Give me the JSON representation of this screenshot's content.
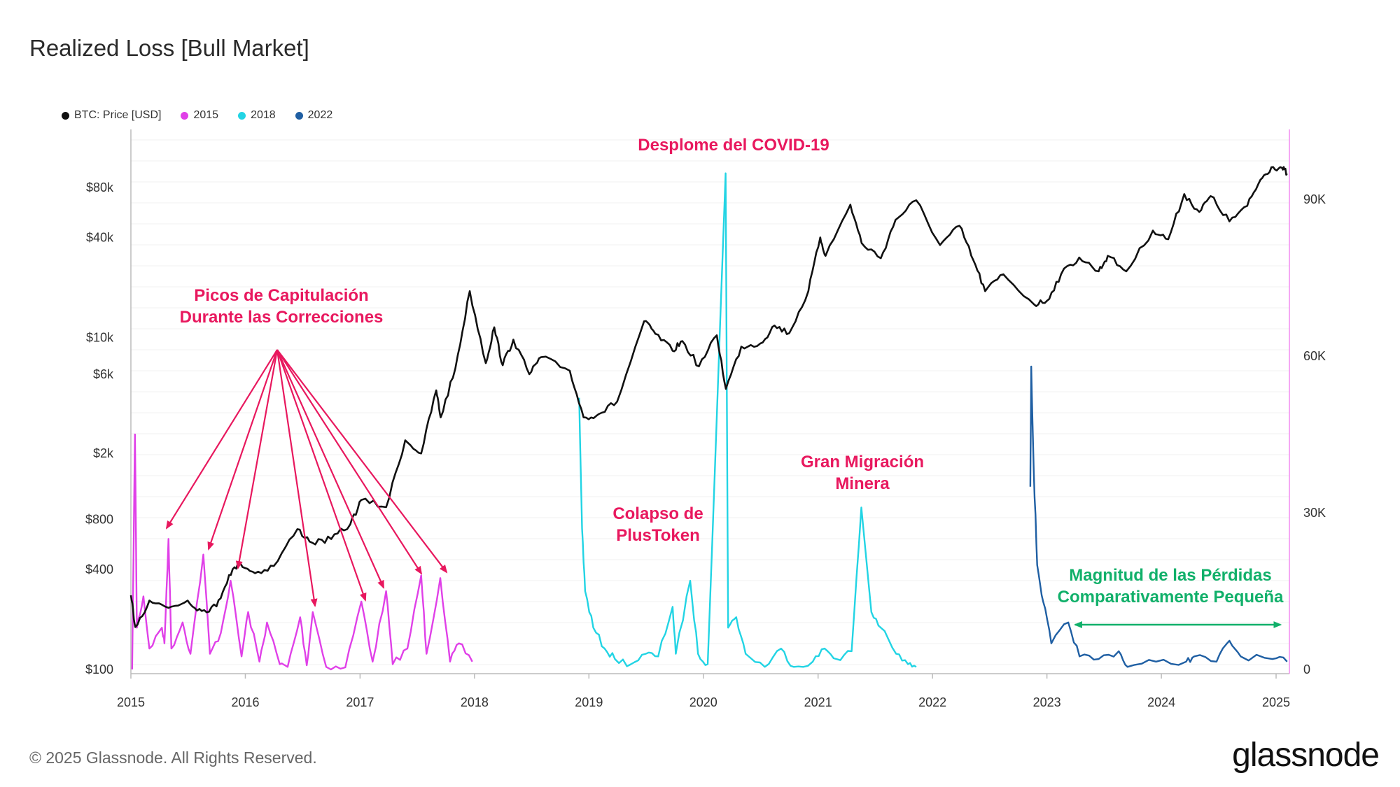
{
  "title": "Realized Loss [Bull Market]",
  "legend": [
    {
      "label": "BTC: Price [USD]",
      "color": "#111111"
    },
    {
      "label": "2015",
      "color": "#e040e8"
    },
    {
      "label": "2018",
      "color": "#22d4e4"
    },
    {
      "label": "2022",
      "color": "#1f5fa3"
    }
  ],
  "footer": "© 2025 Glassnode. All Rights Reserved.",
  "logo": "glassnode",
  "chart_data": {
    "type": "line",
    "x_ticks": [
      "2015",
      "2016",
      "2017",
      "2018",
      "2019",
      "2020",
      "2021",
      "2022",
      "2023",
      "2024",
      "2025"
    ],
    "y_left": {
      "scale": "log",
      "ticks": [
        "$100",
        "$400",
        "$800",
        "$2k",
        "$6k",
        "$10k",
        "$40k",
        "$80k"
      ],
      "tick_values": [
        100,
        400,
        800,
        2000,
        6000,
        10000,
        40000,
        80000
      ]
    },
    "y_right": {
      "scale": "linear",
      "ticks": [
        "0",
        "30K",
        "60K",
        "90K"
      ],
      "tick_values": [
        0,
        30000,
        60000,
        90000
      ]
    },
    "price_series": {
      "name": "BTC: Price [USD]",
      "color": "#111111",
      "axis": "left",
      "points": [
        [
          "2015-01-01",
          280
        ],
        [
          "2015-01-15",
          180
        ],
        [
          "2015-03-01",
          260
        ],
        [
          "2015-05-01",
          235
        ],
        [
          "2015-07-01",
          260
        ],
        [
          "2015-08-15",
          225
        ],
        [
          "2015-10-01",
          240
        ],
        [
          "2015-11-10",
          370
        ],
        [
          "2015-12-15",
          440
        ],
        [
          "2016-02-01",
          380
        ],
        [
          "2016-04-01",
          420
        ],
        [
          "2016-06-15",
          700
        ],
        [
          "2016-08-01",
          580
        ],
        [
          "2016-10-01",
          610
        ],
        [
          "2016-12-01",
          750
        ],
        [
          "2017-01-05",
          1050
        ],
        [
          "2017-03-25",
          950
        ],
        [
          "2017-05-25",
          2400
        ],
        [
          "2017-07-15",
          2000
        ],
        [
          "2017-09-01",
          4800
        ],
        [
          "2017-09-15",
          3300
        ],
        [
          "2017-11-01",
          6500
        ],
        [
          "2017-12-17",
          19000
        ],
        [
          "2018-02-06",
          7000
        ],
        [
          "2018-03-05",
          11500
        ],
        [
          "2018-04-01",
          6800
        ],
        [
          "2018-05-05",
          9700
        ],
        [
          "2018-06-25",
          6000
        ],
        [
          "2018-08-01",
          7600
        ],
        [
          "2018-11-01",
          6300
        ],
        [
          "2018-12-15",
          3300
        ],
        [
          "2019-02-01",
          3450
        ],
        [
          "2019-04-01",
          4100
        ],
        [
          "2019-06-26",
          12500
        ],
        [
          "2019-08-01",
          10500
        ],
        [
          "2019-09-25",
          8300
        ],
        [
          "2019-10-26",
          9500
        ],
        [
          "2019-12-18",
          6700
        ],
        [
          "2020-02-13",
          10300
        ],
        [
          "2020-03-13",
          4900
        ],
        [
          "2020-05-01",
          8800
        ],
        [
          "2020-07-01",
          9200
        ],
        [
          "2020-08-15",
          11800
        ],
        [
          "2020-10-01",
          10600
        ],
        [
          "2020-12-01",
          19000
        ],
        [
          "2021-01-08",
          40000
        ],
        [
          "2021-01-25",
          31000
        ],
        [
          "2021-04-14",
          63000
        ],
        [
          "2021-05-20",
          37000
        ],
        [
          "2021-07-20",
          30000
        ],
        [
          "2021-09-05",
          51000
        ],
        [
          "2021-11-10",
          67000
        ],
        [
          "2022-01-25",
          36000
        ],
        [
          "2022-03-28",
          47000
        ],
        [
          "2022-05-12",
          29000
        ],
        [
          "2022-06-18",
          19000
        ],
        [
          "2022-08-15",
          24000
        ],
        [
          "2022-11-21",
          15800
        ],
        [
          "2023-01-01",
          16600
        ],
        [
          "2023-02-15",
          24000
        ],
        [
          "2023-04-14",
          30300
        ],
        [
          "2023-06-15",
          25000
        ],
        [
          "2023-07-14",
          31000
        ],
        [
          "2023-09-11",
          25000
        ],
        [
          "2023-12-05",
          44000
        ],
        [
          "2024-01-23",
          39000
        ],
        [
          "2024-03-14",
          73000
        ],
        [
          "2024-05-01",
          57000
        ],
        [
          "2024-06-06",
          71000
        ],
        [
          "2024-08-05",
          50000
        ],
        [
          "2024-10-01",
          62000
        ],
        [
          "2024-11-12",
          89000
        ],
        [
          "2024-12-17",
          106000
        ],
        [
          "2025-01-20",
          105000
        ],
        [
          "2025-02-05",
          97000
        ]
      ]
    },
    "loss_series": [
      {
        "name": "2015",
        "color": "#e040e8",
        "axis": "right",
        "points": [
          [
            "2015-01-05",
            20
          ],
          [
            "2015-01-14",
            45000
          ],
          [
            "2015-01-20",
            8000
          ],
          [
            "2015-02-10",
            14000
          ],
          [
            "2015-03-01",
            4000
          ],
          [
            "2015-04-10",
            8000
          ],
          [
            "2015-04-18",
            5000
          ],
          [
            "2015-05-01",
            25000
          ],
          [
            "2015-05-10",
            4000
          ],
          [
            "2015-06-15",
            9000
          ],
          [
            "2015-07-10",
            3000
          ],
          [
            "2015-08-20",
            22000
          ],
          [
            "2015-09-10",
            3000
          ],
          [
            "2015-10-15",
            7000
          ],
          [
            "2015-11-15",
            17000
          ],
          [
            "2015-12-20",
            2500
          ],
          [
            "2016-01-10",
            11000
          ],
          [
            "2016-02-15",
            1500
          ],
          [
            "2016-03-10",
            9000
          ],
          [
            "2016-04-20",
            1000
          ],
          [
            "2016-05-15",
            500
          ],
          [
            "2016-06-24",
            10000
          ],
          [
            "2016-07-15",
            800
          ],
          [
            "2016-08-03",
            11000
          ],
          [
            "2016-09-15",
            500
          ],
          [
            "2016-11-15",
            400
          ],
          [
            "2017-01-05",
            13000
          ],
          [
            "2017-02-10",
            1500
          ],
          [
            "2017-03-25",
            15000
          ],
          [
            "2017-04-15",
            1000
          ],
          [
            "2017-06-01",
            4000
          ],
          [
            "2017-07-15",
            18000
          ],
          [
            "2017-08-01",
            3000
          ],
          [
            "2017-09-14",
            17500
          ],
          [
            "2017-10-15",
            1500
          ],
          [
            "2017-11-12",
            5000
          ],
          [
            "2017-12-25",
            1500
          ]
        ]
      },
      {
        "name": "2018",
        "color": "#22d4e4",
        "axis": "right",
        "points": [
          [
            "2018-12-01",
            52000
          ],
          [
            "2018-12-10",
            27000
          ],
          [
            "2018-12-20",
            15000
          ],
          [
            "2019-01-15",
            8000
          ],
          [
            "2019-02-20",
            4000
          ],
          [
            "2019-03-25",
            2000
          ],
          [
            "2019-05-15",
            1000
          ],
          [
            "2019-07-01",
            3000
          ],
          [
            "2019-08-10",
            2500
          ],
          [
            "2019-09-25",
            12000
          ],
          [
            "2019-10-05",
            3000
          ],
          [
            "2019-11-20",
            17000
          ],
          [
            "2019-12-15",
            3000
          ],
          [
            "2020-01-15",
            1000
          ],
          [
            "2020-03-12",
            95000
          ],
          [
            "2020-03-20",
            8000
          ],
          [
            "2020-04-15",
            10000
          ],
          [
            "2020-05-15",
            3000
          ],
          [
            "2020-07-15",
            500
          ],
          [
            "2020-09-05",
            4000
          ],
          [
            "2020-10-15",
            500
          ],
          [
            "2020-12-15",
            1500
          ],
          [
            "2021-01-22",
            4000
          ],
          [
            "2021-03-01",
            2000
          ],
          [
            "2021-04-18",
            3500
          ],
          [
            "2021-05-19",
            31000
          ],
          [
            "2021-06-20",
            11000
          ],
          [
            "2021-07-20",
            8000
          ],
          [
            "2021-09-07",
            3000
          ],
          [
            "2021-10-15",
            1000
          ],
          [
            "2021-11-10",
            500
          ]
        ]
      },
      {
        "name": "2022",
        "color": "#1f5fa3",
        "axis": "right",
        "points": [
          [
            "2022-11-09",
            35000
          ],
          [
            "2022-11-12",
            58000
          ],
          [
            "2022-11-20",
            38000
          ],
          [
            "2022-12-01",
            20000
          ],
          [
            "2022-12-20",
            13000
          ],
          [
            "2023-01-15",
            5000
          ],
          [
            "2023-03-10",
            9000
          ],
          [
            "2023-04-15",
            2500
          ],
          [
            "2023-06-15",
            2000
          ],
          [
            "2023-08-18",
            3500
          ],
          [
            "2023-09-15",
            500
          ],
          [
            "2023-12-15",
            1500
          ],
          [
            "2024-03-20",
            1500
          ],
          [
            "2024-04-15",
            2500
          ],
          [
            "2024-06-25",
            1500
          ],
          [
            "2024-08-05",
            5500
          ],
          [
            "2024-09-10",
            2500
          ],
          [
            "2024-12-20",
            2000
          ],
          [
            "2025-02-05",
            1500
          ]
        ]
      }
    ],
    "annotations": [
      {
        "text": [
          "Picos de Capitulación",
          "Durante las Correcciones"
        ],
        "color": "#e8185e"
      },
      {
        "text": [
          "Desplome del COVID-19"
        ],
        "color": "#e8185e"
      },
      {
        "text": [
          "Colapso de",
          "PlusToken"
        ],
        "color": "#e8185e"
      },
      {
        "text": [
          "Gran Migración",
          "Minera"
        ],
        "color": "#e8185e"
      },
      {
        "text": [
          "Magnitud de las Pérdidas",
          "Comparativamente Pequeña"
        ],
        "color": "#11b06a"
      }
    ],
    "capitulation_arrow_dates": [
      "2015-05-01",
      "2015-08-20",
      "2015-11-15",
      "2016-08-03",
      "2017-01-05",
      "2017-03-25",
      "2017-07-15",
      "2017-09-14"
    ],
    "bracket_range": [
      "2023-04-01",
      "2025-01-15"
    ],
    "grid": true,
    "legend_position": "top-left"
  }
}
